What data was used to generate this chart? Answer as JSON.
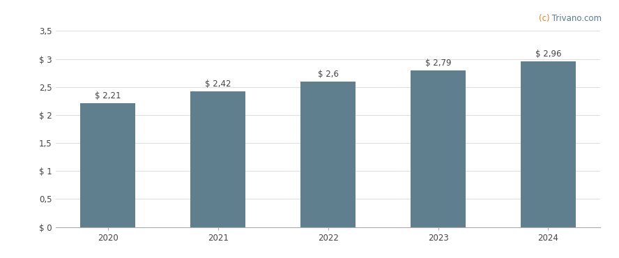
{
  "categories": [
    "2020",
    "2021",
    "2022",
    "2023",
    "2024"
  ],
  "values": [
    2.21,
    2.42,
    2.6,
    2.79,
    2.96
  ],
  "labels": [
    "$ 2,21",
    "$ 2,42",
    "$ 2,6",
    "$ 2,79",
    "$ 2,96"
  ],
  "bar_color": "#5f7f8e",
  "background_color": "#ffffff",
  "ylim": [
    0,
    3.5
  ],
  "yticks": [
    0,
    0.5,
    1.0,
    1.5,
    2.0,
    2.5,
    3.0,
    3.5
  ],
  "ytick_labels": [
    "$ 0",
    "0,5",
    "$ 1",
    "1,5",
    "$ 2",
    "2,5",
    "$ 3",
    "3,5"
  ],
  "grid_color": "#e0e0e0",
  "watermark_c": "(c)",
  "watermark_rest": " Trivano.com",
  "watermark_color_c": "#e8821e",
  "watermark_color_rest": "#5a7a9a",
  "label_fontsize": 8.5,
  "tick_fontsize": 8.5,
  "watermark_fontsize": 8.5,
  "bar_width": 0.5
}
